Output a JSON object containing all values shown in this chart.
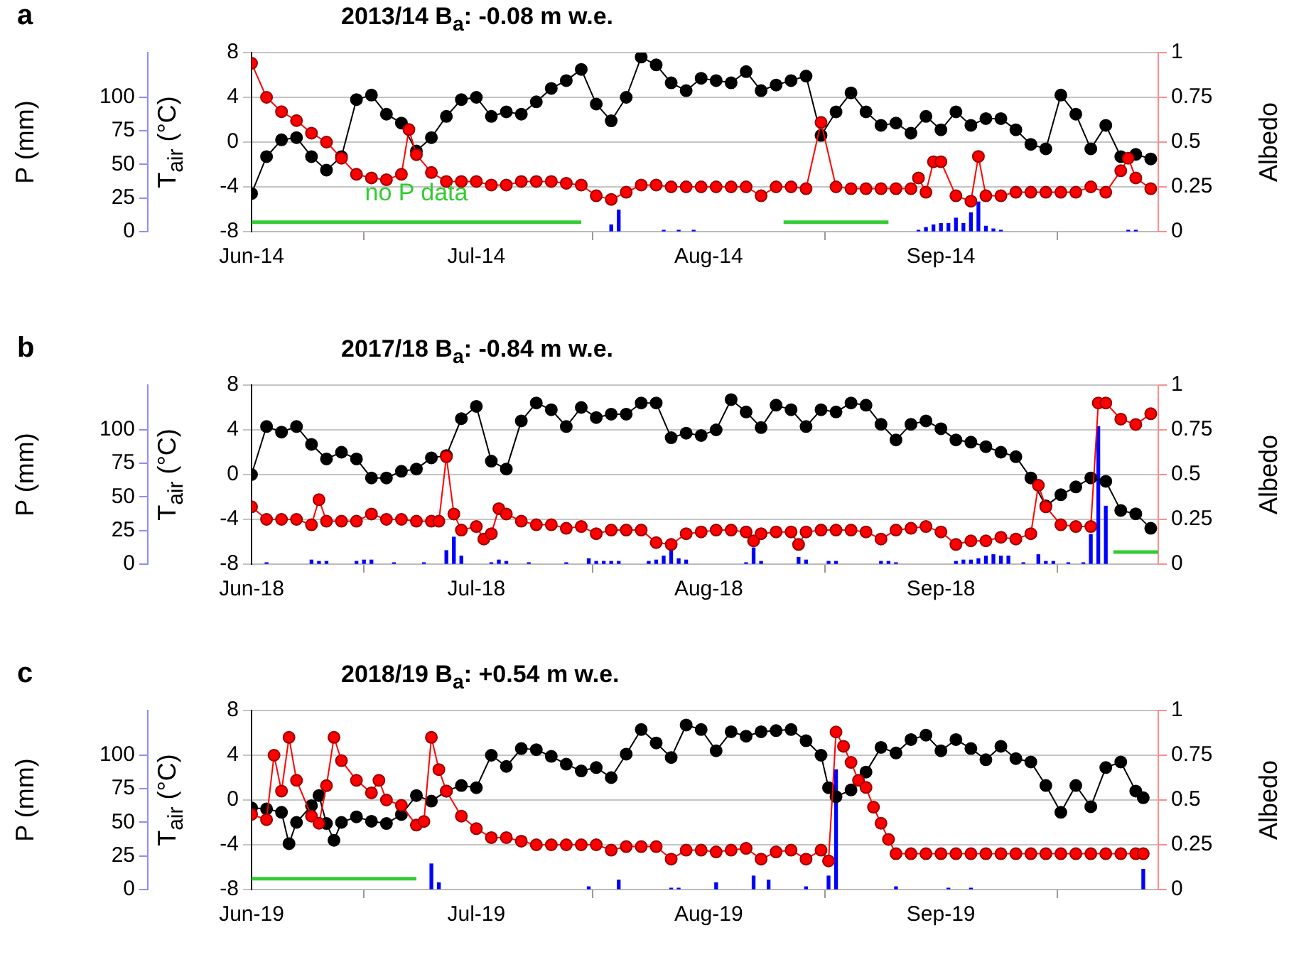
{
  "chart_data": [
    {
      "type": "line",
      "title": "2013/14 B$_{a}$: -0.08 m w.e.",
      "annotations": [
        "a",
        "no P data"
      ],
      "ylabel": "T$_{air}$ (°C)",
      "y2label": "Albedo",
      "y3label": "P (mm)",
      "xlim": [
        "2014-06-01",
        "2014-09-30"
      ],
      "xticks": [
        {
          "value": "2014-06-01",
          "label": "Jun-14"
        },
        {
          "value": "2014-07-01",
          "label": "Jul-14"
        },
        {
          "value": "2014-08-01",
          "label": "Aug-14"
        },
        {
          "value": "2014-09-01",
          "label": "Sep-14"
        }
      ],
      "ylim": [
        -8,
        8
      ],
      "yticks": [
        -8,
        -4,
        0,
        4,
        8
      ],
      "y2lim": [
        0,
        1
      ],
      "y2ticks": [
        0,
        0.25,
        0.5,
        0.75,
        1
      ],
      "y3lim": [
        0,
        133
      ],
      "y3ticks": [
        0,
        25,
        50,
        75,
        100
      ],
      "grid": "y",
      "marker": "circle",
      "series": [
        {
          "type": "line",
          "axis": "y3",
          "color": "#33cc33",
          "marker": "none",
          "x": [
            "2014-06-01",
            "2014-07-15"
          ],
          "values": [
            7,
            7
          ]
        },
        {
          "type": "line",
          "axis": "y3",
          "color": "#33cc33",
          "marker": "none",
          "x": [
            "2014-08-11",
            "2014-08-25"
          ],
          "values": [
            7,
            7
          ]
        },
        {
          "type": "bar",
          "axis": "y3",
          "color": "#0000ff",
          "x": [
            "2014-07-19",
            "2014-07-20",
            "2014-07-26",
            "2014-07-28",
            "2014-07-30",
            "2014-08-29",
            "2014-08-30",
            "2014-08-31",
            "2014-09-01",
            "2014-09-02",
            "2014-09-03",
            "2014-09-04",
            "2014-09-05",
            "2014-09-06",
            "2014-09-07",
            "2014-09-08",
            "2014-09-09",
            "2014-09-26",
            "2014-09-27"
          ],
          "values": [
            5,
            16,
            1,
            1,
            1,
            1,
            3,
            5,
            6,
            6,
            10,
            6,
            14,
            22,
            4,
            2,
            1,
            1,
            1
          ]
        },
        {
          "axis": "y",
          "color": "#000000",
          "x": [
            "2014-06-01",
            "2014-06-03",
            "2014-06-05",
            "2014-06-07",
            "2014-06-09",
            "2014-06-11",
            "2014-06-13",
            "2014-06-15",
            "2014-06-17",
            "2014-06-19",
            "2014-06-21",
            "2014-06-23",
            "2014-06-25",
            "2014-06-27",
            "2014-06-29",
            "2014-07-01",
            "2014-07-03",
            "2014-07-05",
            "2014-07-07",
            "2014-07-09",
            "2014-07-11",
            "2014-07-13",
            "2014-07-15",
            "2014-07-17",
            "2014-07-19",
            "2014-07-21",
            "2014-07-23",
            "2014-07-25",
            "2014-07-27",
            "2014-07-29",
            "2014-07-31",
            "2014-08-02",
            "2014-08-04",
            "2014-08-06",
            "2014-08-08",
            "2014-08-10",
            "2014-08-12",
            "2014-08-14",
            "2014-08-16",
            "2014-08-18",
            "2014-08-20",
            "2014-08-22",
            "2014-08-24",
            "2014-08-26",
            "2014-08-28",
            "2014-08-30",
            "2014-09-01",
            "2014-09-03",
            "2014-09-05",
            "2014-09-07",
            "2014-09-09",
            "2014-09-11",
            "2014-09-13",
            "2014-09-15",
            "2014-09-17",
            "2014-09-19",
            "2014-09-21",
            "2014-09-23",
            "2014-09-25",
            "2014-09-27",
            "2014-09-29"
          ],
          "values": [
            -4.6,
            -1.3,
            0.2,
            0.4,
            -1.3,
            -2.5,
            -1.3,
            3.8,
            4.2,
            2.5,
            1.7,
            -0.8,
            0.4,
            2.3,
            3.8,
            4.0,
            2.3,
            2.7,
            2.5,
            3.6,
            4.8,
            5.5,
            6.5,
            3.4,
            1.9,
            4.0,
            7.6,
            6.9,
            5.3,
            4.6,
            5.7,
            5.5,
            5.3,
            6.3,
            4.6,
            5.1,
            5.5,
            5.9,
            0.6,
            2.7,
            4.4,
            2.7,
            1.5,
            1.7,
            0.8,
            2.3,
            1.1,
            2.7,
            1.5,
            2.1,
            2.1,
            1.1,
            -0.2,
            -0.6,
            4.2,
            2.5,
            -0.6,
            1.5,
            -1.3,
            -1.1,
            -1.5
          ]
        },
        {
          "axis": "y2",
          "color": "#ff0000",
          "x": [
            "2014-06-01",
            "2014-06-03",
            "2014-06-05",
            "2014-06-07",
            "2014-06-09",
            "2014-06-11",
            "2014-06-13",
            "2014-06-15",
            "2014-06-17",
            "2014-06-19",
            "2014-06-21",
            "2014-06-22",
            "2014-06-23",
            "2014-06-25",
            "2014-06-27",
            "2014-06-29",
            "2014-07-01",
            "2014-07-03",
            "2014-07-05",
            "2014-07-07",
            "2014-07-09",
            "2014-07-11",
            "2014-07-13",
            "2014-07-15",
            "2014-07-17",
            "2014-07-19",
            "2014-07-21",
            "2014-07-23",
            "2014-07-25",
            "2014-07-27",
            "2014-07-29",
            "2014-07-31",
            "2014-08-02",
            "2014-08-04",
            "2014-08-06",
            "2014-08-08",
            "2014-08-10",
            "2014-08-12",
            "2014-08-14",
            "2014-08-16",
            "2014-08-18",
            "2014-08-20",
            "2014-08-22",
            "2014-08-24",
            "2014-08-26",
            "2014-08-28",
            "2014-08-29",
            "2014-08-30",
            "2014-08-31",
            "2014-09-01",
            "2014-09-03",
            "2014-09-05",
            "2014-09-06",
            "2014-09-07",
            "2014-09-09",
            "2014-09-11",
            "2014-09-13",
            "2014-09-15",
            "2014-09-17",
            "2014-09-19",
            "2014-09-21",
            "2014-09-23",
            "2014-09-25",
            "2014-09-26",
            "2014-09-27",
            "2014-09-29"
          ],
          "values": [
            0.94,
            0.75,
            0.67,
            0.62,
            0.55,
            0.5,
            0.41,
            0.32,
            0.3,
            0.29,
            0.32,
            0.57,
            0.43,
            0.33,
            0.28,
            0.28,
            0.28,
            0.26,
            0.26,
            0.28,
            0.28,
            0.28,
            0.27,
            0.26,
            0.2,
            0.18,
            0.22,
            0.26,
            0.26,
            0.25,
            0.25,
            0.25,
            0.25,
            0.25,
            0.25,
            0.2,
            0.25,
            0.25,
            0.24,
            0.61,
            0.25,
            0.24,
            0.24,
            0.24,
            0.24,
            0.24,
            0.3,
            0.22,
            0.39,
            0.39,
            0.2,
            0.17,
            0.42,
            0.2,
            0.2,
            0.22,
            0.22,
            0.22,
            0.22,
            0.22,
            0.25,
            0.22,
            0.34,
            0.41,
            0.3,
            0.24
          ]
        }
      ]
    },
    {
      "type": "line",
      "title": "2017/18 B$_{a}$: -0.84 m w.e.",
      "annotations": [
        "b"
      ],
      "ylabel": "T$_{air}$ (°C)",
      "y2label": "Albedo",
      "y3label": "P (mm)",
      "xlim": [
        "2018-06-01",
        "2018-09-30"
      ],
      "xticks": [
        {
          "value": "2018-06-01",
          "label": "Jun-18"
        },
        {
          "value": "2018-07-01",
          "label": "Jul-18"
        },
        {
          "value": "2018-08-01",
          "label": "Aug-18"
        },
        {
          "value": "2018-09-01",
          "label": "Sep-18"
        }
      ],
      "ylim": [
        -8,
        8
      ],
      "yticks": [
        -8,
        -4,
        0,
        4,
        8
      ],
      "y2lim": [
        0,
        1
      ],
      "y2ticks": [
        0,
        0.25,
        0.5,
        0.75,
        1
      ],
      "y3lim": [
        0,
        133
      ],
      "y3ticks": [
        0,
        25,
        50,
        75,
        100
      ],
      "grid": "y",
      "marker": "circle",
      "series": [
        {
          "type": "line",
          "axis": "y3",
          "color": "#33cc33",
          "marker": "none",
          "x": [
            "2018-09-24",
            "2018-09-30"
          ],
          "values": [
            9,
            9
          ]
        },
        {
          "type": "bar",
          "axis": "y3",
          "color": "#0000ff",
          "x": [
            "2018-06-03",
            "2018-06-09",
            "2018-06-10",
            "2018-06-11",
            "2018-06-15",
            "2018-06-16",
            "2018-06-17",
            "2018-06-20",
            "2018-06-24",
            "2018-06-27",
            "2018-06-28",
            "2018-06-29",
            "2018-07-03",
            "2018-07-04",
            "2018-07-05",
            "2018-07-08",
            "2018-07-13",
            "2018-07-16",
            "2018-07-17",
            "2018-07-18",
            "2018-07-19",
            "2018-07-20",
            "2018-07-24",
            "2018-07-25",
            "2018-07-26",
            "2018-07-27",
            "2018-07-28",
            "2018-07-29",
            "2018-08-06",
            "2018-08-07",
            "2018-08-08",
            "2018-08-13",
            "2018-08-14",
            "2018-08-17",
            "2018-08-18",
            "2018-08-24",
            "2018-08-25",
            "2018-08-26",
            "2018-09-03",
            "2018-09-04",
            "2018-09-05",
            "2018-09-06",
            "2018-09-07",
            "2018-09-08",
            "2018-09-09",
            "2018-09-10",
            "2018-09-12",
            "2018-09-14",
            "2018-09-15",
            "2018-09-16",
            "2018-09-18",
            "2018-09-20",
            "2018-09-21",
            "2018-09-22",
            "2018-09-23"
          ],
          "values": [
            1,
            3,
            2,
            2,
            2,
            3,
            3,
            1,
            1,
            10,
            20,
            6,
            1,
            3,
            2,
            1,
            1,
            4,
            2,
            2,
            2,
            2,
            2,
            3,
            6,
            10,
            4,
            3,
            1,
            12,
            2,
            5,
            3,
            2,
            2,
            2,
            2,
            1,
            2,
            3,
            3,
            4,
            6,
            7,
            6,
            6,
            1,
            7,
            2,
            2,
            1,
            1,
            22,
            102,
            43
          ]
        },
        {
          "axis": "y",
          "color": "#000000",
          "x": [
            "2018-06-01",
            "2018-06-03",
            "2018-06-05",
            "2018-06-07",
            "2018-06-09",
            "2018-06-11",
            "2018-06-13",
            "2018-06-15",
            "2018-06-17",
            "2018-06-19",
            "2018-06-21",
            "2018-06-23",
            "2018-06-25",
            "2018-06-27",
            "2018-06-29",
            "2018-07-01",
            "2018-07-03",
            "2018-07-05",
            "2018-07-07",
            "2018-07-09",
            "2018-07-11",
            "2018-07-13",
            "2018-07-15",
            "2018-07-17",
            "2018-07-19",
            "2018-07-21",
            "2018-07-23",
            "2018-07-25",
            "2018-07-27",
            "2018-07-29",
            "2018-07-31",
            "2018-08-02",
            "2018-08-04",
            "2018-08-06",
            "2018-08-08",
            "2018-08-10",
            "2018-08-12",
            "2018-08-14",
            "2018-08-16",
            "2018-08-18",
            "2018-08-20",
            "2018-08-22",
            "2018-08-24",
            "2018-08-26",
            "2018-08-28",
            "2018-08-30",
            "2018-09-01",
            "2018-09-03",
            "2018-09-05",
            "2018-09-07",
            "2018-09-09",
            "2018-09-11",
            "2018-09-13",
            "2018-09-15",
            "2018-09-17",
            "2018-09-19",
            "2018-09-21",
            "2018-09-23",
            "2018-09-25",
            "2018-09-27",
            "2018-09-29"
          ],
          "values": [
            0,
            4.3,
            3.8,
            4.3,
            2.7,
            1.4,
            2.0,
            1.4,
            -0.3,
            -0.3,
            0.3,
            0.5,
            1.5,
            1.7,
            5.0,
            6.1,
            1.2,
            0.5,
            4.8,
            6.4,
            5.8,
            4.3,
            6.0,
            5.1,
            5.4,
            5.4,
            6.4,
            6.4,
            3.3,
            3.7,
            3.5,
            4.0,
            6.7,
            5.6,
            4.2,
            6.2,
            5.8,
            4.3,
            5.8,
            5.6,
            6.4,
            6.2,
            4.5,
            3.1,
            4.5,
            4.8,
            4.1,
            3.1,
            2.9,
            2.5,
            2.0,
            1.6,
            -0.3,
            -2.8,
            -1.8,
            -1.1,
            -0.3,
            -0.6,
            -3.2,
            -3.5,
            -4.8
          ]
        },
        {
          "axis": "y2",
          "color": "#ff0000",
          "x": [
            "2018-06-01",
            "2018-06-03",
            "2018-06-05",
            "2018-06-07",
            "2018-06-09",
            "2018-06-10",
            "2018-06-11",
            "2018-06-13",
            "2018-06-15",
            "2018-06-17",
            "2018-06-19",
            "2018-06-21",
            "2018-06-23",
            "2018-06-25",
            "2018-06-26",
            "2018-06-27",
            "2018-06-28",
            "2018-06-29",
            "2018-07-01",
            "2018-07-02",
            "2018-07-03",
            "2018-07-04",
            "2018-07-05",
            "2018-07-07",
            "2018-07-09",
            "2018-07-11",
            "2018-07-13",
            "2018-07-15",
            "2018-07-17",
            "2018-07-19",
            "2018-07-21",
            "2018-07-23",
            "2018-07-25",
            "2018-07-27",
            "2018-07-29",
            "2018-07-31",
            "2018-08-02",
            "2018-08-04",
            "2018-08-06",
            "2018-08-07",
            "2018-08-08",
            "2018-08-10",
            "2018-08-12",
            "2018-08-13",
            "2018-08-14",
            "2018-08-16",
            "2018-08-18",
            "2018-08-20",
            "2018-08-22",
            "2018-08-24",
            "2018-08-26",
            "2018-08-28",
            "2018-08-30",
            "2018-09-01",
            "2018-09-03",
            "2018-09-05",
            "2018-09-07",
            "2018-09-09",
            "2018-09-11",
            "2018-09-13",
            "2018-09-14",
            "2018-09-15",
            "2018-09-17",
            "2018-09-19",
            "2018-09-21",
            "2018-09-22",
            "2018-09-23",
            "2018-09-25",
            "2018-09-27",
            "2018-09-29"
          ],
          "values": [
            0.32,
            0.25,
            0.25,
            0.25,
            0.22,
            0.36,
            0.24,
            0.24,
            0.24,
            0.28,
            0.25,
            0.25,
            0.24,
            0.24,
            0.24,
            0.6,
            0.28,
            0.19,
            0.21,
            0.14,
            0.17,
            0.31,
            0.28,
            0.24,
            0.22,
            0.22,
            0.2,
            0.21,
            0.17,
            0.19,
            0.19,
            0.19,
            0.12,
            0.11,
            0.17,
            0.18,
            0.19,
            0.19,
            0.18,
            0.13,
            0.17,
            0.18,
            0.18,
            0.11,
            0.18,
            0.19,
            0.19,
            0.19,
            0.18,
            0.14,
            0.19,
            0.2,
            0.21,
            0.18,
            0.11,
            0.13,
            0.13,
            0.15,
            0.14,
            0.17,
            0.44,
            0.32,
            0.22,
            0.21,
            0.21,
            0.9,
            0.9,
            0.81,
            0.78,
            0.84
          ]
        }
      ]
    },
    {
      "type": "line",
      "title": "2018/19 B$_{a}$: +0.54 m w.e.",
      "annotations": [
        "c"
      ],
      "ylabel": "T$_{air}$ (°C)",
      "y2label": "Albedo",
      "y3label": "P (mm)",
      "xlim": [
        "2019-06-01",
        "2019-09-30"
      ],
      "xticks": [
        {
          "value": "2019-06-01",
          "label": "Jun-19"
        },
        {
          "value": "2019-07-01",
          "label": "Jul-19"
        },
        {
          "value": "2019-08-01",
          "label": "Aug-19"
        },
        {
          "value": "2019-09-01",
          "label": "Sep-19"
        }
      ],
      "ylim": [
        -8,
        8
      ],
      "yticks": [
        -8,
        -4,
        0,
        4,
        8
      ],
      "y2lim": [
        0,
        1
      ],
      "y2ticks": [
        0,
        0.25,
        0.5,
        0.75,
        1
      ],
      "y3lim": [
        0,
        133
      ],
      "y3ticks": [
        0,
        25,
        50,
        75,
        100
      ],
      "grid": "y",
      "marker": "circle",
      "series": [
        {
          "type": "line",
          "axis": "y3",
          "color": "#33cc33",
          "marker": "none",
          "x": [
            "2019-06-01",
            "2019-06-23"
          ],
          "values": [
            8,
            8
          ]
        },
        {
          "type": "bar",
          "axis": "y3",
          "color": "#0000ff",
          "x": [
            "2019-06-25",
            "2019-06-26",
            "2019-07-16",
            "2019-07-20",
            "2019-07-27",
            "2019-07-28",
            "2019-08-02",
            "2019-08-07",
            "2019-08-09",
            "2019-08-14",
            "2019-08-17",
            "2019-08-18",
            "2019-08-26",
            "2019-09-02",
            "2019-09-05",
            "2019-09-28"
          ],
          "values": [
            19,
            5,
            2,
            7,
            1,
            1,
            5,
            10,
            7,
            2,
            10,
            89,
            2,
            1,
            1,
            15
          ]
        },
        {
          "axis": "y",
          "color": "#000000",
          "x": [
            "2019-06-01",
            "2019-06-03",
            "2019-06-05",
            "2019-06-06",
            "2019-06-07",
            "2019-06-09",
            "2019-06-10",
            "2019-06-11",
            "2019-06-12",
            "2019-06-13",
            "2019-06-15",
            "2019-06-17",
            "2019-06-19",
            "2019-06-21",
            "2019-06-23",
            "2019-06-25",
            "2019-06-27",
            "2019-06-29",
            "2019-07-01",
            "2019-07-03",
            "2019-07-05",
            "2019-07-07",
            "2019-07-09",
            "2019-07-11",
            "2019-07-13",
            "2019-07-15",
            "2019-07-17",
            "2019-07-19",
            "2019-07-21",
            "2019-07-23",
            "2019-07-25",
            "2019-07-27",
            "2019-07-29",
            "2019-07-31",
            "2019-08-02",
            "2019-08-04",
            "2019-08-06",
            "2019-08-08",
            "2019-08-10",
            "2019-08-12",
            "2019-08-14",
            "2019-08-16",
            "2019-08-17",
            "2019-08-18",
            "2019-08-20",
            "2019-08-22",
            "2019-08-24",
            "2019-08-26",
            "2019-08-28",
            "2019-08-30",
            "2019-09-01",
            "2019-09-03",
            "2019-09-05",
            "2019-09-07",
            "2019-09-09",
            "2019-09-11",
            "2019-09-13",
            "2019-09-15",
            "2019-09-17",
            "2019-09-19",
            "2019-09-21",
            "2019-09-23",
            "2019-09-25",
            "2019-09-27",
            "2019-09-28"
          ],
          "values": [
            -0.7,
            -0.8,
            -1.1,
            -3.9,
            -2.0,
            -0.5,
            0.4,
            -2.1,
            -3.6,
            -2.0,
            -1.5,
            -1.9,
            -2.1,
            -1.3,
            0.4,
            -0.1,
            0.8,
            1.3,
            1.1,
            4.0,
            3.0,
            4.6,
            4.5,
            3.9,
            3.2,
            2.6,
            2.9,
            2.0,
            4.1,
            6.3,
            5.1,
            3.8,
            6.7,
            6.3,
            4.4,
            6.1,
            5.7,
            6.1,
            6.2,
            6.3,
            5.3,
            4.0,
            1.1,
            0.3,
            0.9,
            2.5,
            4.7,
            4.2,
            5.4,
            5.8,
            4.4,
            5.4,
            4.6,
            3.6,
            4.8,
            3.7,
            3.4,
            1.3,
            -1.1,
            1.3,
            -0.6,
            2.9,
            3.4,
            0.8,
            0.2
          ]
        },
        {
          "axis": "y2",
          "color": "#ff0000",
          "x": [
            "2019-06-01",
            "2019-06-03",
            "2019-06-04",
            "2019-06-05",
            "2019-06-06",
            "2019-06-07",
            "2019-06-09",
            "2019-06-10",
            "2019-06-11",
            "2019-06-12",
            "2019-06-13",
            "2019-06-15",
            "2019-06-17",
            "2019-06-18",
            "2019-06-19",
            "2019-06-21",
            "2019-06-23",
            "2019-06-24",
            "2019-06-25",
            "2019-06-26",
            "2019-06-27",
            "2019-06-29",
            "2019-07-01",
            "2019-07-03",
            "2019-07-05",
            "2019-07-07",
            "2019-07-09",
            "2019-07-11",
            "2019-07-13",
            "2019-07-15",
            "2019-07-17",
            "2019-07-19",
            "2019-07-21",
            "2019-07-23",
            "2019-07-25",
            "2019-07-27",
            "2019-07-29",
            "2019-07-31",
            "2019-08-02",
            "2019-08-04",
            "2019-08-06",
            "2019-08-08",
            "2019-08-10",
            "2019-08-12",
            "2019-08-14",
            "2019-08-16",
            "2019-08-17",
            "2019-08-18",
            "2019-08-19",
            "2019-08-20",
            "2019-08-21",
            "2019-08-22",
            "2019-08-23",
            "2019-08-24",
            "2019-08-25",
            "2019-08-26",
            "2019-08-28",
            "2019-08-30",
            "2019-09-01",
            "2019-09-03",
            "2019-09-05",
            "2019-09-07",
            "2019-09-09",
            "2019-09-11",
            "2019-09-13",
            "2019-09-15",
            "2019-09-17",
            "2019-09-19",
            "2019-09-21",
            "2019-09-23",
            "2019-09-25",
            "2019-09-27",
            "2019-09-28"
          ],
          "values": [
            0.42,
            0.39,
            0.75,
            0.55,
            0.85,
            0.61,
            0.41,
            0.37,
            0.58,
            0.85,
            0.72,
            0.61,
            0.54,
            0.61,
            0.5,
            0.47,
            0.36,
            0.38,
            0.85,
            0.67,
            0.55,
            0.41,
            0.34,
            0.29,
            0.29,
            0.27,
            0.25,
            0.25,
            0.25,
            0.25,
            0.25,
            0.22,
            0.24,
            0.24,
            0.24,
            0.17,
            0.22,
            0.22,
            0.21,
            0.22,
            0.23,
            0.17,
            0.21,
            0.22,
            0.17,
            0.22,
            0.16,
            0.88,
            0.8,
            0.71,
            0.61,
            0.57,
            0.46,
            0.37,
            0.28,
            0.2,
            0.2,
            0.2,
            0.2,
            0.2,
            0.2,
            0.2,
            0.2,
            0.2,
            0.2,
            0.2,
            0.2,
            0.2,
            0.2,
            0.2,
            0.2,
            0.2,
            0.2
          ]
        }
      ]
    }
  ]
}
